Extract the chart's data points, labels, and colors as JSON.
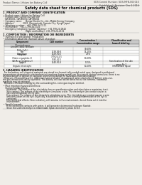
{
  "bg_color": "#f0ede8",
  "header_top_left": "Product Name: Lithium Ion Battery Cell",
  "header_top_right": "SDS Control Number: SDS-MFB-000010\nEstablished / Revision: Dec.1.2016",
  "title": "Safety data sheet for chemical products (SDS)",
  "section1_title": "1. PRODUCT AND COMPANY IDENTIFICATION",
  "section1_lines": [
    " • Product name: Lithium Ion Battery Cell",
    " • Product code: Cylindrical-type cell",
    "   (AF-B6001, (AF-B6050, (AF-B6054",
    " • Company name:      Benop Electric Co., Ltd., Mobile Energy Company",
    " • Address:              2021  Kannoutsuki, Sumoto City, Hyogo, Japan",
    " • Telephone number:   +81-(799)-24-1111",
    " • Fax number:   +81-1-799-24-1121",
    " • Emergency telephone number (daytime): +81-799-24-0842",
    "                                    (Night and holiday): +81-799-24-2101"
  ],
  "section2_title": "2. COMPOSITION / INFORMATION ON INGREDIENTS",
  "section2_sub": " • Substance or preparation: Preparation",
  "section2_sub2": " • Information about the chemical nature of product:",
  "table_headers": [
    "Component",
    "CAS number",
    "Concentration /\nConcentration range",
    "Classification and\nhazard labeling"
  ],
  "table_subheader": "Chemical name",
  "table_rows": [
    [
      "Lithium cobalt tantalate\n(LiMn₂CoO₄)",
      "",
      "30-60%",
      ""
    ],
    [
      "Iron",
      "7439-89-6",
      "15-25%",
      ""
    ],
    [
      "Aluminium",
      "7429-90-5",
      "2-5%",
      ""
    ],
    [
      "Graphite\n(Flake or graphite-1)\n(Al-Mo or graphite-2)",
      "77762-42-5\n7782-42-5",
      "10-20%",
      ""
    ],
    [
      "Copper",
      "7440-50-8",
      "5-15%",
      "Sensitization of the skin\ngroup No.2"
    ],
    [
      "Organic electrolyte",
      "",
      "10-20%",
      "Inflammable liquid"
    ]
  ],
  "section3_title": "3. HAZARDS IDENTIFICATION",
  "section3_para": [
    "  For the battery cell, chemical materials are stored in a hermetically sealed metal case, designed to withstand",
    "temperatures generated by electrochemical reactions during normal use. As a result, during normal use, there is no",
    "physical danger of ignition or explosion and thermal danger of hazardous materials leakage.",
    "  However, if exposed to a fire, added mechanical shocks, decomposed, when electrolyte of battery miss-use,",
    "the gas release vent will be operated. The battery cell case will be breached at the extreme, hazardous",
    "materials may be released.",
    "  Moreover, if heated strongly by the surrounding fire, some gas may be emitted."
  ],
  "section3_bullet1": " • Most important hazard and effects:",
  "section3_sub1": "    Human health effects:",
  "section3_sub1_lines": [
    "      Inhalation: The release of the electrolyte has an anesthesia action and stimulates a respiratory tract.",
    "      Skin contact: The release of the electrolyte stimulates a skin. The electrolyte skin contact causes a",
    "      sore and stimulation on the skin.",
    "      Eye contact: The release of the electrolyte stimulates eyes. The electrolyte eye contact causes a sore",
    "      and stimulation on the eye. Especially, a substance that causes a strong inflammation of the eye is",
    "      contained.",
    "      Environmental effects: Since a battery cell remains in the environment, do not throw out it into the",
    "      environment."
  ],
  "section3_bullet2": " • Specific hazards:",
  "section3_sub2_lines": [
    "      If the electrolyte contacts with water, it will generate detrimental hydrogen fluoride.",
    "      Since the used electrolyte is inflammable liquid, do not bring close to fire."
  ]
}
